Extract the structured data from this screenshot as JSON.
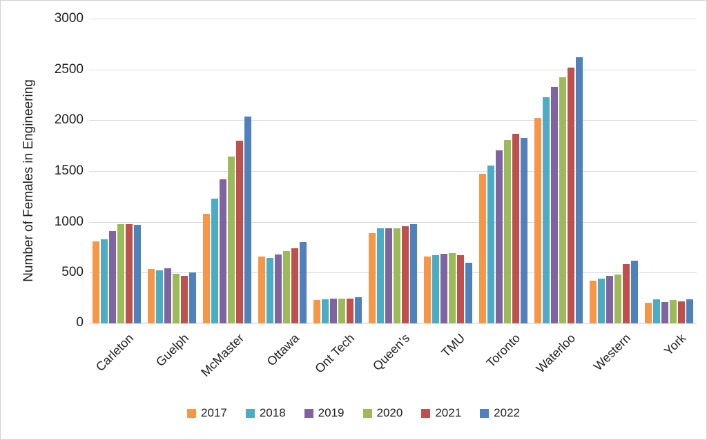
{
  "frame": {
    "background": "#FFFFFF",
    "border_color": "#D0D0D0"
  },
  "chart_data": {
    "type": "bar",
    "title": "",
    "xlabel": "",
    "ylabel": "Number of Females in Engineering",
    "ylim": [
      0,
      3000
    ],
    "yticks": [
      0,
      500,
      1000,
      1500,
      2000,
      2500,
      3000
    ],
    "ytick_labels": [
      "0",
      "500",
      "1000",
      "1500",
      "2000",
      "2500",
      "3000"
    ],
    "grid": true,
    "gridline_color": "#D9D9D9",
    "baseline_color": "#BFBFBF",
    "legend_position": "bottom",
    "categories": [
      "Carleton",
      "Guelph",
      "McMaster",
      "Ottawa",
      "Ont Tech",
      "Queen's",
      "TMU",
      "Toronto",
      "Waterloo",
      "Western",
      "York"
    ],
    "series": [
      {
        "name": "2017",
        "color": "#F79646",
        "values": [
          805,
          535,
          1080,
          660,
          230,
          890,
          660,
          1470,
          2020,
          420,
          205
        ]
      },
      {
        "name": "2018",
        "color": "#4BACC6",
        "values": [
          825,
          525,
          1230,
          645,
          240,
          940,
          675,
          1555,
          2225,
          440,
          235
        ]
      },
      {
        "name": "2019",
        "color": "#8064A2",
        "values": [
          910,
          545,
          1420,
          680,
          245,
          935,
          685,
          1705,
          2330,
          465,
          210
        ]
      },
      {
        "name": "2020",
        "color": "#9BBB59",
        "values": [
          980,
          490,
          1645,
          710,
          245,
          935,
          690,
          1805,
          2420,
          485,
          230
        ]
      },
      {
        "name": "2021",
        "color": "#C0504D",
        "values": [
          975,
          465,
          1800,
          740,
          245,
          960,
          670,
          1865,
          2520,
          585,
          220
        ]
      },
      {
        "name": "2022",
        "color": "#4F81BD",
        "values": [
          970,
          500,
          2035,
          800,
          260,
          980,
          600,
          1825,
          2620,
          620,
          235
        ]
      }
    ]
  }
}
